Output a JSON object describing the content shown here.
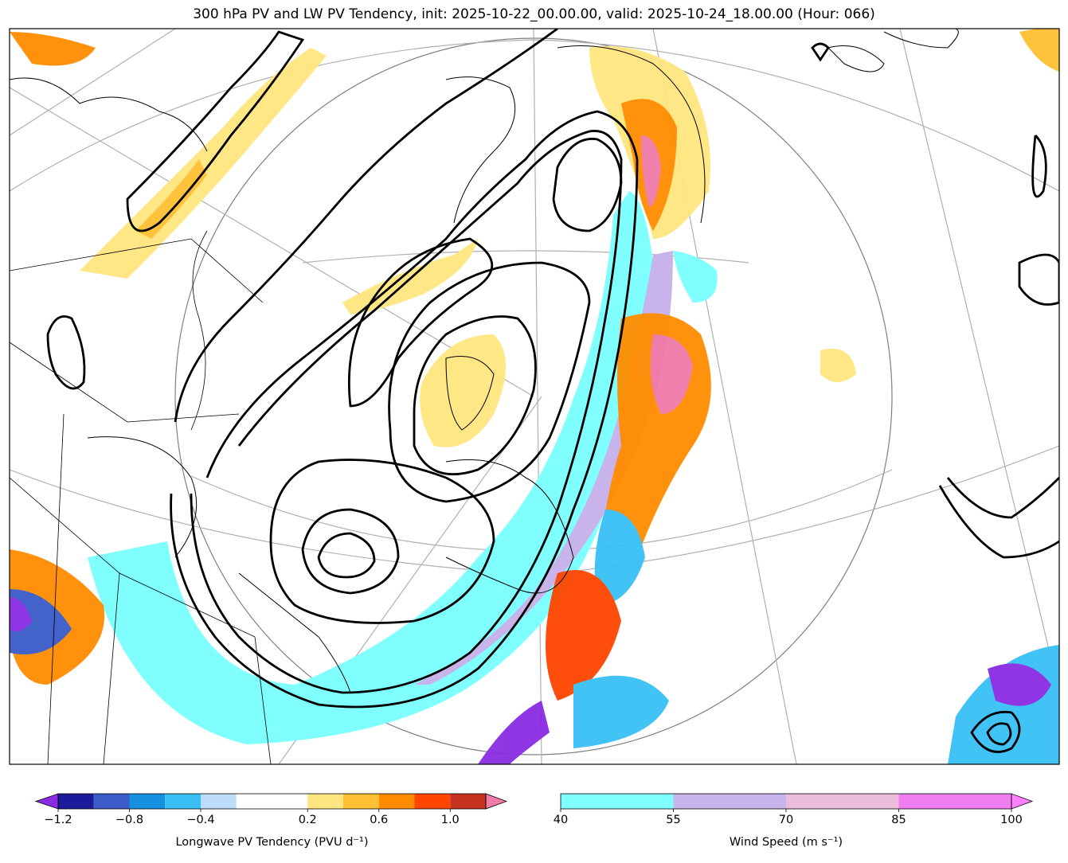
{
  "title": "300 hPa PV and LW PV Tendency, init: 2025-10-22_00.00.00, valid: 2025-10-24_18.00.00 (Hour: 066)",
  "chart_data": {
    "type": "map",
    "fields": {
      "contours": "300 hPa PV (black lines)",
      "fill_tendency": "Longwave PV Tendency",
      "fill_wind": "Wind Speed"
    },
    "colorbars": [
      {
        "name": "tendency",
        "label": "Longwave PV Tendency (PVU d⁻¹)",
        "bounds": [
          -1.2,
          -1.0,
          -0.8,
          -0.6,
          -0.4,
          -0.2,
          0.2,
          0.4,
          0.6,
          0.8,
          1.0,
          1.2
        ],
        "colors": [
          "#8a2be2",
          "#1a1a9a",
          "#3a5bc8",
          "#1591e0",
          "#38c0f5",
          "#bcdcfa",
          "#ffffff",
          "#ffe680",
          "#ffbf33",
          "#ff8c00",
          "#ff4500",
          "#c83220",
          "#f07aa8"
        ],
        "extend": "both",
        "tick_values": [
          -1.2,
          -0.8,
          -0.4,
          0.2,
          0.6,
          1.0
        ],
        "tick_labels": [
          "−1.2",
          "−0.8",
          "−0.4",
          "0.2",
          "0.6",
          "1.0"
        ]
      },
      {
        "name": "wind",
        "label": "Wind Speed (m s⁻¹)",
        "bounds": [
          40,
          55,
          70,
          85,
          100
        ],
        "colors": [
          "#80ffff",
          "#c8b4ea",
          "#ecbcdc",
          "#f07ef0"
        ],
        "extend": "max",
        "extend_color": "#ff80ff",
        "tick_values": [
          40,
          55,
          70,
          85,
          100
        ],
        "tick_labels": [
          "40",
          "55",
          "70",
          "85",
          "100"
        ]
      }
    ]
  }
}
